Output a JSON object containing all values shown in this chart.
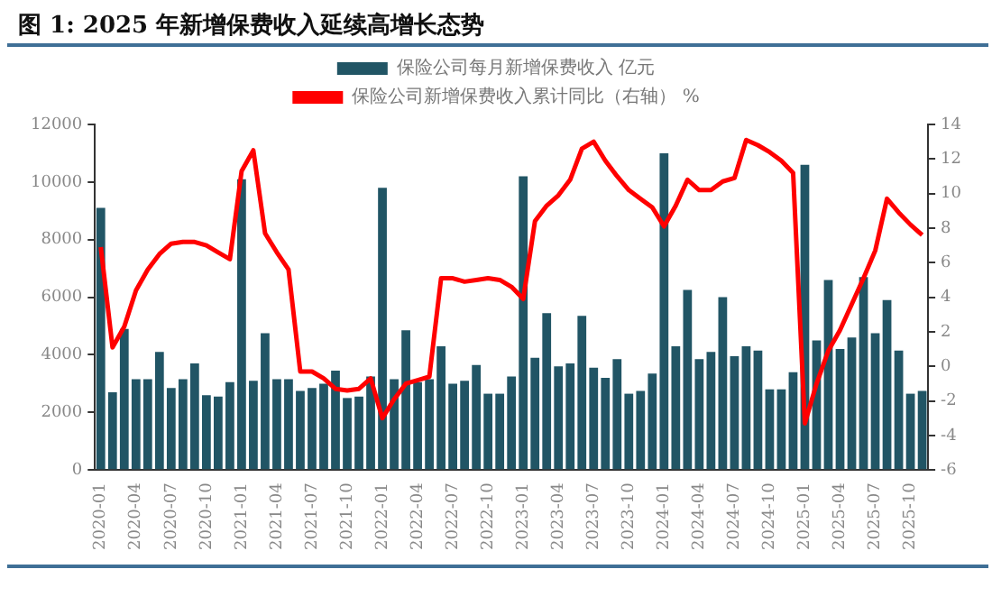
{
  "chart_data": {
    "type": "bar",
    "title": "图 1: 2025 年新增保费收入延续高增长态势",
    "categories": [
      "2020-01",
      null,
      null,
      "2020-04",
      null,
      null,
      "2020-07",
      null,
      null,
      "2020-10",
      null,
      null,
      "2021-01",
      null,
      null,
      "2021-04",
      null,
      null,
      "2021-07",
      null,
      null,
      "2021-10",
      null,
      null,
      "2022-01",
      null,
      null,
      "2022-04",
      null,
      null,
      "2022-07",
      null,
      null,
      "2022-10",
      null,
      null,
      "2023-01",
      null,
      null,
      "2023-04",
      null,
      null,
      "2023-07",
      null,
      null,
      "2023-10",
      null,
      null,
      "2024-01",
      null,
      null,
      "2024-04",
      null,
      null,
      "2024-07",
      null,
      null,
      "2024-10",
      null,
      null,
      "2025-01",
      null,
      null,
      "2025-04",
      null,
      null,
      "2025-07",
      null,
      null,
      "2025-10",
      null
    ],
    "series": [
      {
        "name": "保险公司每月新增保费收入 亿元",
        "color": "#215565",
        "values": [
          9100,
          2700,
          4900,
          3150,
          3150,
          4100,
          2850,
          3150,
          3700,
          2600,
          2550,
          3050,
          10100,
          3100,
          4750,
          3150,
          3150,
          2750,
          2850,
          3000,
          3450,
          2500,
          2550,
          3250,
          9800,
          3150,
          4850,
          3050,
          3150,
          4300,
          3000,
          3100,
          3650,
          2650,
          2650,
          3250,
          10200,
          3900,
          5450,
          3600,
          3700,
          5350,
          3550,
          3200,
          3850,
          2650,
          2750,
          3350,
          11000,
          4300,
          6250,
          3850,
          4100,
          6000,
          3950,
          4300,
          4150,
          2800,
          2800,
          3400,
          10600,
          4500,
          6600,
          4200,
          4600,
          6700,
          4750,
          5900,
          4150,
          2650,
          2750
        ]
      },
      {
        "name": "保险公司新增保费收入累计同比（右轴） %",
        "type": "line",
        "axis": "y2",
        "color": "#ff0000",
        "values": [
          6.9,
          1.1,
          2.3,
          4.4,
          5.6,
          6.5,
          7.1,
          7.2,
          7.2,
          7.0,
          6.6,
          6.2,
          11.3,
          12.5,
          7.7,
          6.6,
          5.6,
          -0.3,
          -0.3,
          -0.7,
          -1.3,
          -1.4,
          -1.3,
          -0.7,
          -3.0,
          -1.9,
          -1.0,
          -0.8,
          -0.6,
          5.1,
          5.1,
          4.9,
          5.0,
          5.1,
          5.0,
          4.6,
          3.9,
          8.4,
          9.3,
          9.9,
          10.8,
          12.6,
          13.0,
          11.9,
          11.0,
          10.2,
          9.7,
          9.2,
          8.1,
          9.3,
          10.8,
          10.2,
          10.2,
          10.7,
          10.9,
          13.1,
          12.8,
          12.4,
          11.9,
          11.2,
          -3.3,
          -1.0,
          0.9,
          2.1,
          3.6,
          5.1,
          6.7,
          9.7,
          8.9,
          8.2,
          7.6
        ]
      }
    ],
    "ylim": [
      0,
      12000
    ],
    "yticks": [
      0,
      2000,
      4000,
      6000,
      8000,
      10000,
      12000
    ],
    "y2lim": [
      -6,
      14
    ],
    "y2ticks": [
      -6,
      -4,
      -2,
      0,
      2,
      4,
      6,
      8,
      10,
      12,
      14
    ],
    "legend": "top",
    "grid": false
  }
}
